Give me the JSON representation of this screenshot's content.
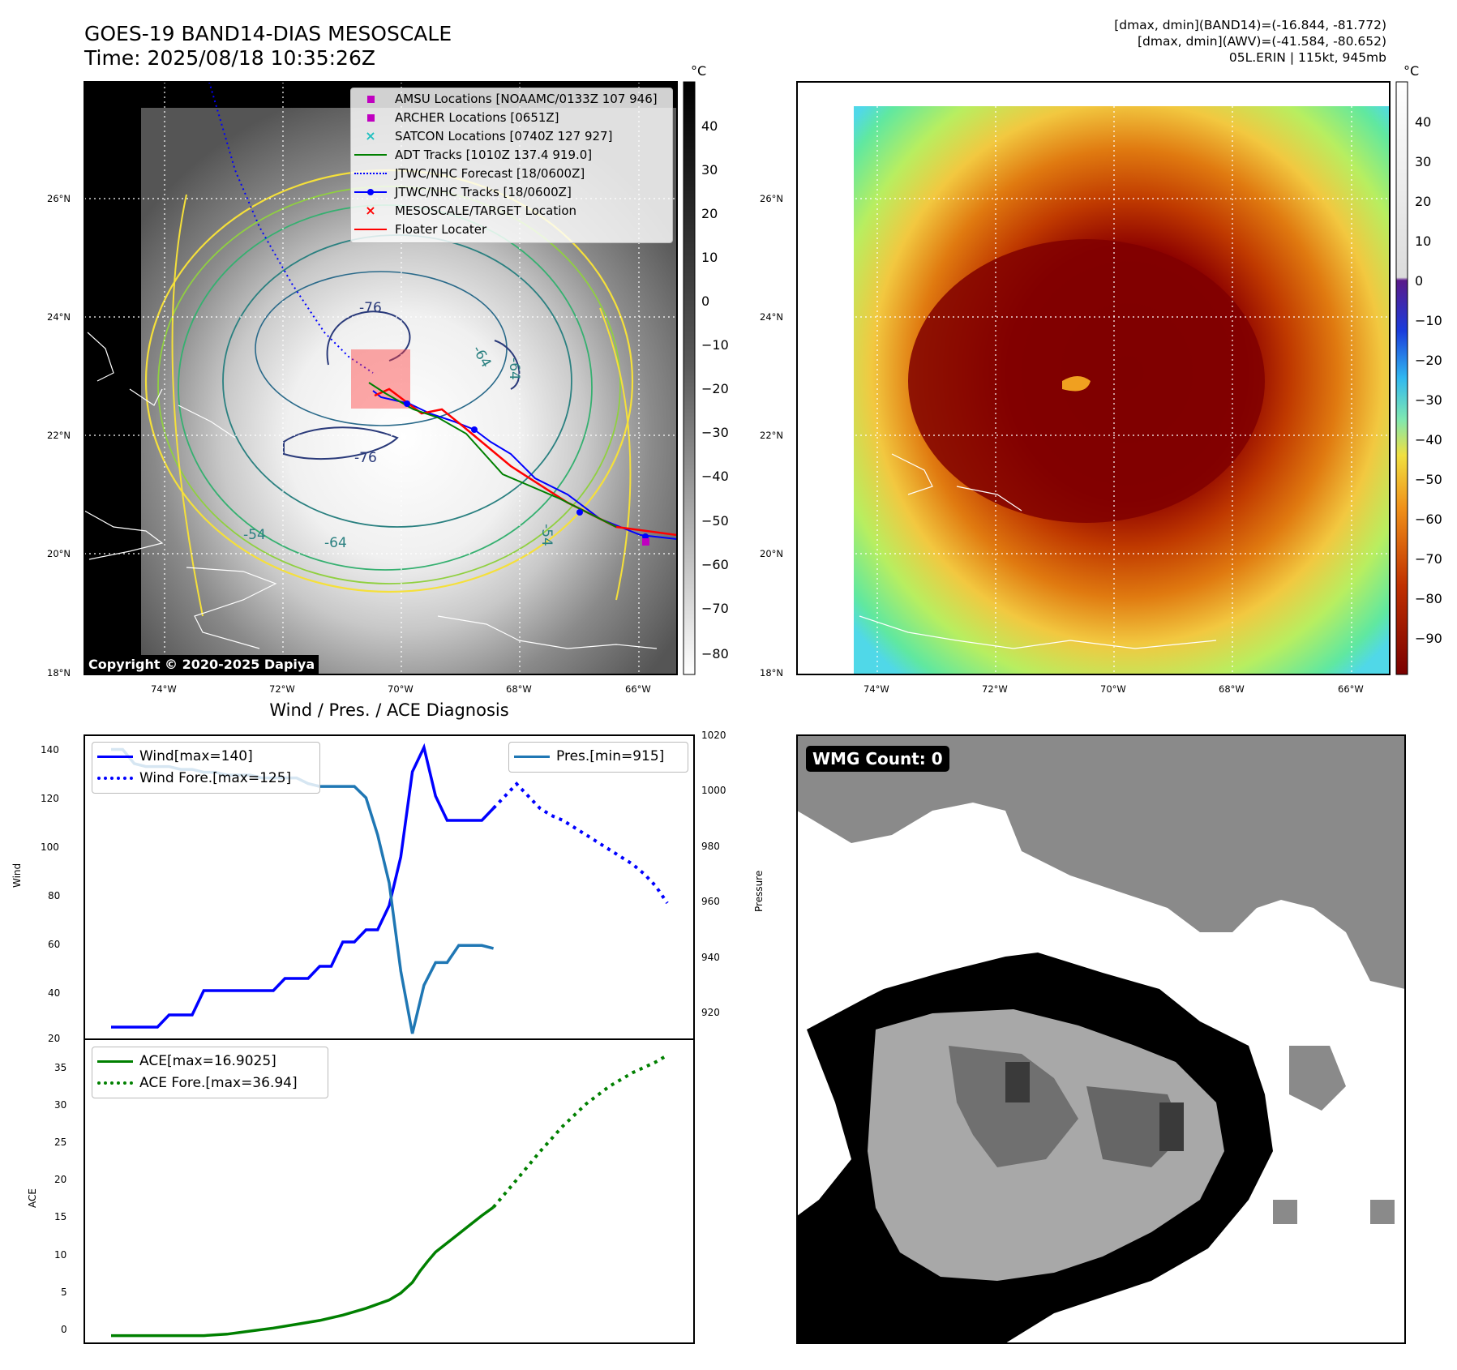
{
  "header": {
    "title_line1": "GOES-19 BAND14-DIAS MESOSCALE",
    "title_line2": "Time: 2025/08/18 10:35:26Z",
    "right_line1": "[dmax, dmin](BAND14)=(-16.844, -81.772)",
    "right_line2": "[dmax, dmin](AWV)=(-41.584, -80.652)",
    "right_line3": "05L.ERIN | 115kt, 945mb"
  },
  "map": {
    "lat_labels": [
      "26°N",
      "24°N",
      "22°N",
      "20°N",
      "18°N"
    ],
    "lon_labels": [
      "74°W",
      "72°W",
      "70°W",
      "68°W",
      "66°W"
    ],
    "contour_labels": [
      "-76",
      "-76",
      "-64",
      "-54",
      "-64",
      "-54",
      "-64"
    ],
    "copyright": "Copyright © 2020-2025 Dapiya",
    "legend": [
      {
        "label": "AMSU Locations [NOAAMC/0133Z 107 946]",
        "marker": "square",
        "color": "#c000c0"
      },
      {
        "label": "ARCHER Locations [0651Z]",
        "marker": "square",
        "color": "#c000c0"
      },
      {
        "label": "SATCON Locations [0740Z 127 927]",
        "marker": "x",
        "color": "#20c0c0"
      },
      {
        "label": "ADT Tracks [1010Z 137.4 919.0]",
        "marker": "line",
        "color": "#008000"
      },
      {
        "label": "JTWC/NHC Forecast [18/0600Z]",
        "marker": "dotted",
        "color": "#0000ff"
      },
      {
        "label": "JTWC/NHC Tracks [18/0600Z]",
        "marker": "line-dot",
        "color": "#0000ff"
      },
      {
        "label": "MESOSCALE/TARGET Location",
        "marker": "x",
        "color": "#ff0000"
      },
      {
        "label": "Floater Locater",
        "marker": "line",
        "color": "#ff0000"
      }
    ]
  },
  "colorbar_left": {
    "unit": "°C",
    "ticks": [
      "40",
      "30",
      "20",
      "10",
      "0",
      "−10",
      "−20",
      "−30",
      "−40",
      "−50",
      "−60",
      "−70",
      "−80"
    ]
  },
  "colorbar_right": {
    "unit": "°C",
    "ticks": [
      "40",
      "30",
      "20",
      "10",
      "0",
      "−10",
      "−20",
      "−30",
      "−40",
      "−50",
      "−60",
      "−70",
      "−80",
      "−90"
    ]
  },
  "wmg": {
    "label": "WMG Count: 0"
  },
  "chart_data": [
    {
      "type": "line",
      "title": "Wind / Pres. / ACE Diagnosis",
      "ylabel": "Wind",
      "y2label": "Pressure",
      "ylim": [
        20,
        145
      ],
      "y2lim": [
        913,
        1020
      ],
      "yticks": [
        "140",
        "120",
        "100",
        "80",
        "60",
        "40",
        "20"
      ],
      "y2ticks": [
        "1020",
        "1000",
        "980",
        "960",
        "940",
        "920"
      ],
      "legend_left": [
        "Wind[max=140]",
        "Wind Fore.[max=125]"
      ],
      "legend_right": [
        "Pres.[min=915]"
      ],
      "series": [
        {
          "name": "Wind[max=140]",
          "color": "#0000ff",
          "style": "solid",
          "x": [
            0,
            3,
            6,
            9,
            12,
            15,
            18,
            21,
            24,
            27,
            30,
            33,
            36,
            39,
            42,
            45,
            48,
            51,
            54,
            57,
            60,
            63,
            66,
            69,
            72,
            75,
            78,
            81,
            84,
            87,
            90,
            93,
            96,
            99
          ],
          "values": [
            25,
            25,
            25,
            25,
            25,
            30,
            30,
            30,
            40,
            40,
            40,
            40,
            40,
            40,
            40,
            45,
            45,
            45,
            50,
            50,
            60,
            60,
            65,
            65,
            75,
            95,
            130,
            140,
            120,
            110,
            110,
            110,
            110,
            115
          ]
        },
        {
          "name": "Wind Fore.[max=125]",
          "color": "#0000ff",
          "style": "dotted",
          "x": [
            99,
            102,
            105,
            108,
            111,
            114,
            117,
            120,
            123,
            126,
            129,
            132,
            135,
            138,
            141,
            144
          ],
          "values": [
            115,
            120,
            125,
            120,
            115,
            112,
            110,
            107,
            104,
            101,
            98,
            95,
            92,
            88,
            83,
            76
          ]
        },
        {
          "name": "Pres.[min=915]",
          "color": "#1f77b4",
          "style": "solid",
          "axis": "right",
          "x": [
            0,
            3,
            6,
            9,
            12,
            15,
            18,
            21,
            24,
            27,
            30,
            33,
            36,
            39,
            42,
            45,
            48,
            51,
            54,
            57,
            60,
            63,
            66,
            69,
            72,
            75,
            78,
            81,
            84,
            87,
            90,
            93,
            96,
            99
          ],
          "values": [
            1015,
            1015,
            1010,
            1009,
            1009,
            1009,
            1008,
            1008,
            1007,
            1007,
            1006,
            1006,
            1006,
            1005,
            1005,
            1005,
            1005,
            1003,
            1002,
            1002,
            1002,
            1002,
            998,
            985,
            968,
            937,
            915,
            932,
            940,
            940,
            946,
            946,
            946,
            945
          ]
        }
      ]
    },
    {
      "type": "line",
      "ylabel": "ACE",
      "ylim": [
        -1,
        39
      ],
      "yticks": [
        "35",
        "30",
        "25",
        "20",
        "15",
        "10",
        "5",
        "0"
      ],
      "legend": [
        "ACE[max=16.9025]",
        "ACE Fore.[max=36.94]"
      ],
      "series": [
        {
          "name": "ACE[max=16.9025]",
          "color": "#008000",
          "style": "solid",
          "x": [
            0,
            9,
            15,
            21,
            24,
            30,
            36,
            42,
            48,
            54,
            60,
            66,
            72,
            75,
            78,
            80,
            82,
            84,
            87,
            90,
            93,
            96,
            99
          ],
          "values": [
            0,
            0,
            0,
            0,
            0,
            0.2,
            0.6,
            1.0,
            1.5,
            2.0,
            2.7,
            3.6,
            4.7,
            5.6,
            7.0,
            8.5,
            9.8,
            11.0,
            12.2,
            13.4,
            14.6,
            15.8,
            16.9
          ]
        },
        {
          "name": "ACE Fore.[max=36.94]",
          "color": "#008000",
          "style": "dotted",
          "x": [
            99,
            105,
            111,
            117,
            123,
            129,
            135,
            141,
            144
          ],
          "values": [
            16.9,
            20.5,
            24.2,
            27.6,
            30.5,
            32.8,
            34.6,
            36.0,
            36.9
          ]
        }
      ]
    }
  ]
}
